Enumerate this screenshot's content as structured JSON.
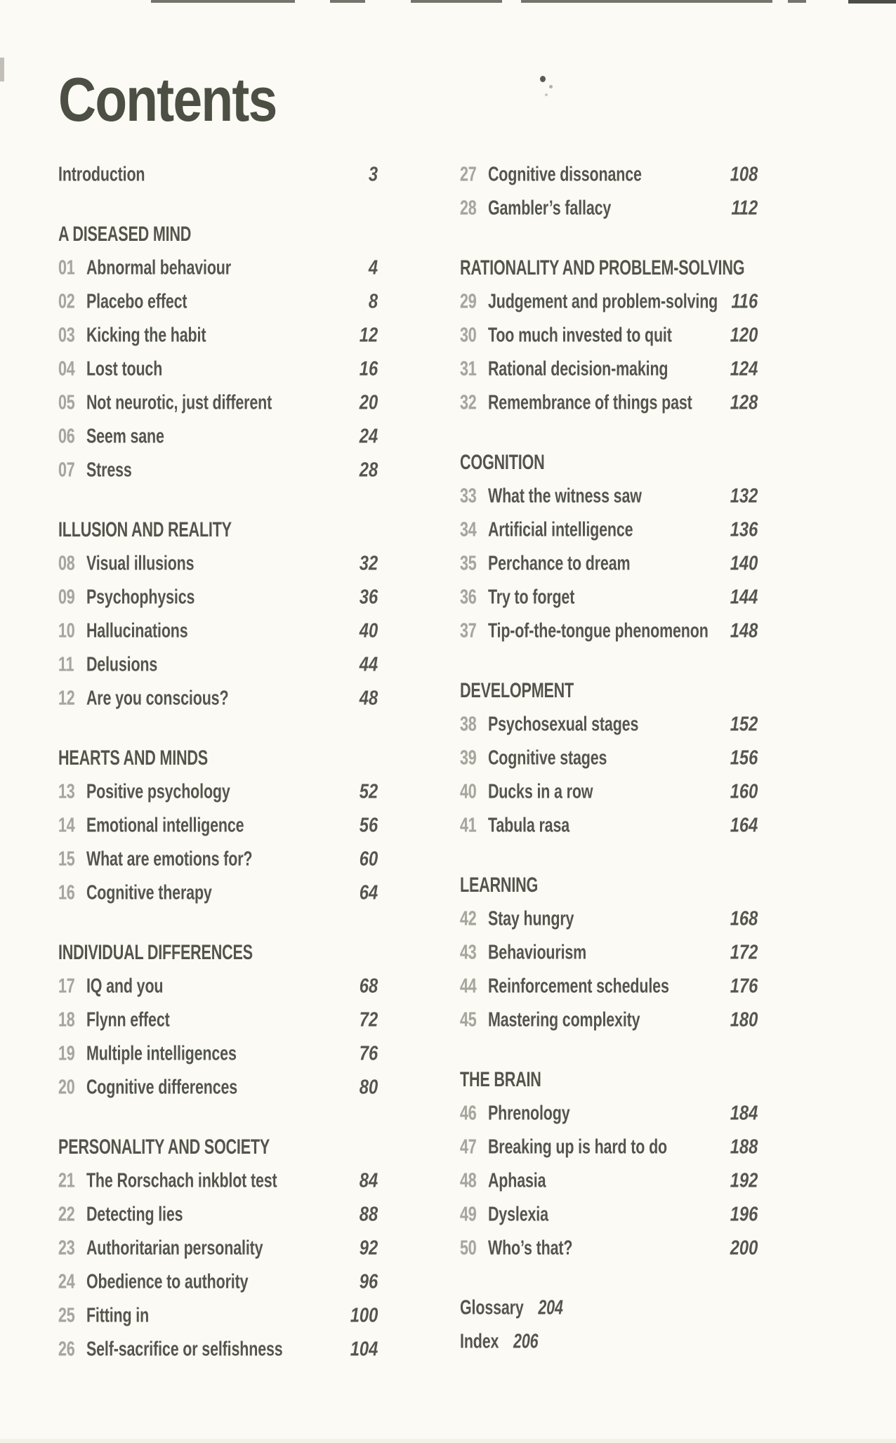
{
  "page": {
    "title": "Contents",
    "background_color": "#fcfaf4",
    "title_color": "#4b4f44",
    "text_color": "#54564e",
    "chapter_number_color": "#a6a59e",
    "page_number_color": "#55574f"
  },
  "toc": {
    "columns": {
      "left": [
        {
          "header": null,
          "entries": [
            {
              "num": "",
              "title": "Introduction",
              "page": "3"
            }
          ]
        },
        {
          "header": "A DISEASED MIND",
          "entries": [
            {
              "num": "01",
              "title": "Abnormal behaviour",
              "page": "4"
            },
            {
              "num": "02",
              "title": "Placebo effect",
              "page": "8"
            },
            {
              "num": "03",
              "title": "Kicking the habit",
              "page": "12"
            },
            {
              "num": "04",
              "title": "Lost touch",
              "page": "16"
            },
            {
              "num": "05",
              "title": "Not neurotic, just different",
              "page": "20"
            },
            {
              "num": "06",
              "title": "Seem sane",
              "page": "24"
            },
            {
              "num": "07",
              "title": "Stress",
              "page": "28"
            }
          ]
        },
        {
          "header": "ILLUSION AND REALITY",
          "entries": [
            {
              "num": "08",
              "title": "Visual illusions",
              "page": "32"
            },
            {
              "num": "09",
              "title": "Psychophysics",
              "page": "36"
            },
            {
              "num": "10",
              "title": "Hallucinations",
              "page": "40"
            },
            {
              "num": "11",
              "title": "Delusions",
              "page": "44"
            },
            {
              "num": "12",
              "title": "Are you conscious?",
              "page": "48"
            }
          ]
        },
        {
          "header": "HEARTS AND MINDS",
          "entries": [
            {
              "num": "13",
              "title": "Positive psychology",
              "page": "52"
            },
            {
              "num": "14",
              "title": "Emotional intelligence",
              "page": "56"
            },
            {
              "num": "15",
              "title": "What are emotions for?",
              "page": "60"
            },
            {
              "num": "16",
              "title": "Cognitive therapy",
              "page": "64"
            }
          ]
        },
        {
          "header": "INDIVIDUAL DIFFERENCES",
          "entries": [
            {
              "num": "17",
              "title": "IQ and you",
              "page": "68"
            },
            {
              "num": "18",
              "title": "Flynn effect",
              "page": "72"
            },
            {
              "num": "19",
              "title": "Multiple intelligences",
              "page": "76"
            },
            {
              "num": "20",
              "title": "Cognitive differences",
              "page": "80"
            }
          ]
        },
        {
          "header": "PERSONALITY AND SOCIETY",
          "entries": [
            {
              "num": "21",
              "title": "The Rorschach inkblot test",
              "page": "84"
            },
            {
              "num": "22",
              "title": "Detecting lies",
              "page": "88"
            },
            {
              "num": "23",
              "title": "Authoritarian personality",
              "page": "92"
            },
            {
              "num": "24",
              "title": "Obedience to authority",
              "page": "96"
            },
            {
              "num": "25",
              "title": "Fitting in",
              "page": "100"
            },
            {
              "num": "26",
              "title": "Self-sacrifice or selfishness",
              "page": "104"
            }
          ]
        }
      ],
      "right": [
        {
          "header": null,
          "entries": [
            {
              "num": "27",
              "title": "Cognitive dissonance",
              "page": "108"
            },
            {
              "num": "28",
              "title": "Gambler’s fallacy",
              "page": "112"
            }
          ]
        },
        {
          "header": "RATIONALITY AND PROBLEM-SOLVING",
          "entries": [
            {
              "num": "29",
              "title": "Judgement and problem-solving",
              "page": "116"
            },
            {
              "num": "30",
              "title": "Too much invested to quit",
              "page": "120"
            },
            {
              "num": "31",
              "title": "Rational decision-making",
              "page": "124"
            },
            {
              "num": "32",
              "title": "Remembrance of things past",
              "page": "128"
            }
          ]
        },
        {
          "header": "COGNITION",
          "entries": [
            {
              "num": "33",
              "title": "What the witness saw",
              "page": "132"
            },
            {
              "num": "34",
              "title": "Artificial intelligence",
              "page": "136"
            },
            {
              "num": "35",
              "title": "Perchance to dream",
              "page": "140"
            },
            {
              "num": "36",
              "title": "Try to forget",
              "page": "144"
            },
            {
              "num": "37",
              "title": "Tip-of-the-tongue phenomenon",
              "page": "148"
            }
          ]
        },
        {
          "header": "DEVELOPMENT",
          "entries": [
            {
              "num": "38",
              "title": "Psychosexual stages",
              "page": "152"
            },
            {
              "num": "39",
              "title": "Cognitive stages",
              "page": "156"
            },
            {
              "num": "40",
              "title": "Ducks in a row",
              "page": "160"
            },
            {
              "num": "41",
              "title": "Tabula rasa",
              "page": "164"
            }
          ]
        },
        {
          "header": "LEARNING",
          "entries": [
            {
              "num": "42",
              "title": "Stay hungry",
              "page": "168"
            },
            {
              "num": "43",
              "title": "Behaviourism",
              "page": "172"
            },
            {
              "num": "44",
              "title": "Reinforcement schedules",
              "page": "176"
            },
            {
              "num": "45",
              "title": "Mastering complexity",
              "page": "180"
            }
          ]
        },
        {
          "header": "THE BRAIN",
          "entries": [
            {
              "num": "46",
              "title": "Phrenology",
              "page": "184"
            },
            {
              "num": "47",
              "title": "Breaking up is hard to do",
              "page": "188"
            },
            {
              "num": "48",
              "title": "Aphasia",
              "page": "192"
            },
            {
              "num": "49",
              "title": "Dyslexia",
              "page": "196"
            },
            {
              "num": "50",
              "title": "Who’s that?",
              "page": "200"
            }
          ]
        }
      ]
    },
    "backmatter": [
      {
        "title": "Glossary",
        "page": "204"
      },
      {
        "title": "Index",
        "page": "206"
      }
    ]
  }
}
